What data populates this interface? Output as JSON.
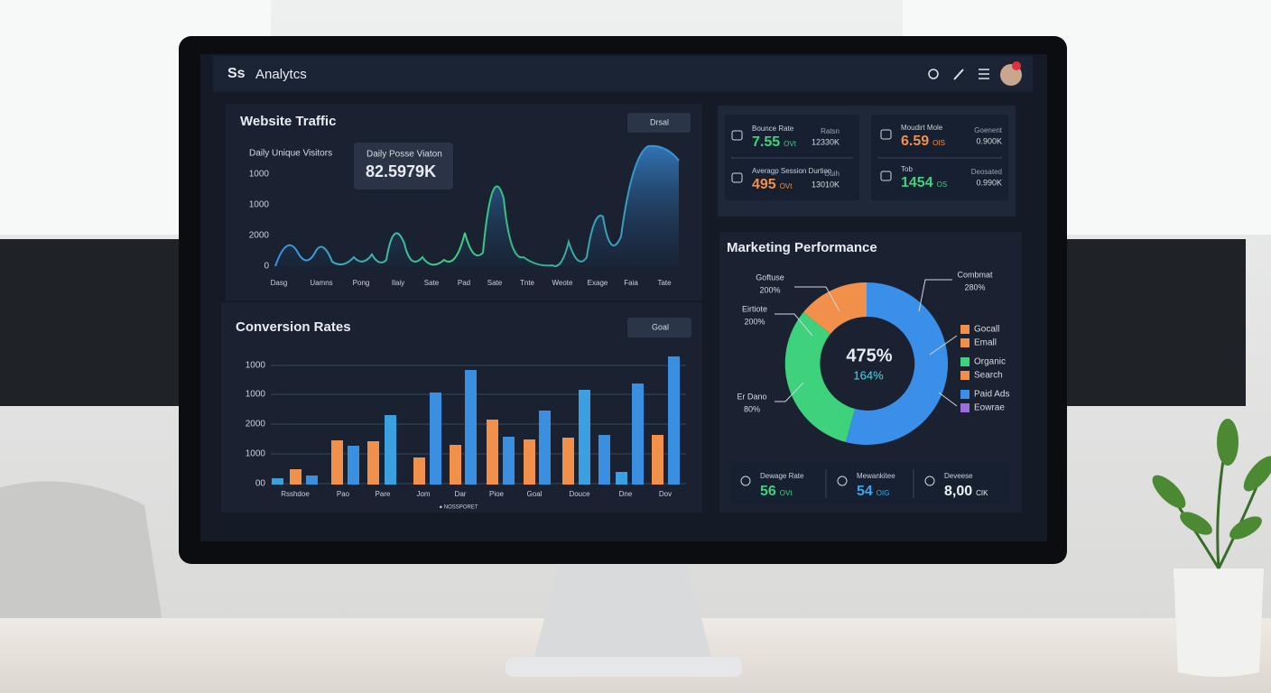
{
  "header": {
    "logo": "Ss",
    "title": "Analytcs"
  },
  "traffic": {
    "title": "Website Traffic",
    "dropdown": "Drsal",
    "subtitle": "Daily Unique Visitors",
    "tooltip": {
      "label": "Daily Posse Viaton",
      "value": "82.5979K"
    },
    "y_labels": [
      "1000",
      "1000",
      "2000",
      "0"
    ],
    "x_labels": [
      "Dasg",
      "Uamns",
      "Pong",
      "Ilaiy",
      "Sate",
      "Pad",
      "Sate",
      "Tnte",
      "Weote",
      "Exage",
      "Faia",
      "Tate"
    ]
  },
  "conversion": {
    "title": "Conversion Rates",
    "dropdown": "Goal",
    "y_labels": [
      "1000",
      "1000",
      "2000",
      "1000",
      "00"
    ],
    "x_labels": [
      "Rsshdoe",
      "Pao",
      "Pare",
      "Jom",
      "Dar",
      "Pioe",
      "Goal",
      "Douce",
      "Dne",
      "Dov"
    ],
    "footer": "● NOSSPORET"
  },
  "kpis": [
    {
      "label": "Bounce Rate",
      "value": "7.55",
      "unit": "OVt",
      "side_label": "Ratsn",
      "side_value": "12330K",
      "color": "green"
    },
    {
      "label": "Averagp Session Durtion",
      "value": "495",
      "unit": "OVt",
      "side_label": "Ouih",
      "side_value": "13010K",
      "color": "orange"
    },
    {
      "label": "Moudirt Mole",
      "value": "6.59",
      "unit": "OIS",
      "side_label": "Goenent",
      "side_value": "0.900K",
      "color": "orange"
    },
    {
      "label": "Tob",
      "value": "1454",
      "unit": "OS",
      "side_label": "Deosated",
      "side_value": "0.990K",
      "color": "green"
    }
  ],
  "marketing": {
    "title": "Marketing Performance",
    "center": "475%",
    "center_sub": "164%",
    "callouts": [
      {
        "label": "Goftuse",
        "value": "200%"
      },
      {
        "label": "Eirtiote",
        "value": "200%"
      },
      {
        "label": "Er Dano",
        "value": "80%"
      },
      {
        "label": "Combmat",
        "value": "280%"
      }
    ],
    "legend": [
      {
        "name": "Gocall",
        "color": "#f0904a"
      },
      {
        "name": "Emall",
        "color": "#f0904a"
      },
      {
        "name": "Organic",
        "color": "#3ed27d"
      },
      {
        "name": "Search",
        "color": "#f0904a"
      },
      {
        "name": "Paid Ads",
        "color": "#3a8fe8"
      },
      {
        "name": "Eowrae",
        "color": "#9a6ee0"
      }
    ]
  },
  "stats": [
    {
      "label": "Dewage Rate",
      "value": "56",
      "unit": "OVt",
      "color": "green"
    },
    {
      "label": "Mewankitee",
      "value": "54",
      "unit": "OIG",
      "color": "blue"
    },
    {
      "label": "Deveese",
      "value": "8,00",
      "unit": "CIK",
      "color": "white"
    }
  ]
}
